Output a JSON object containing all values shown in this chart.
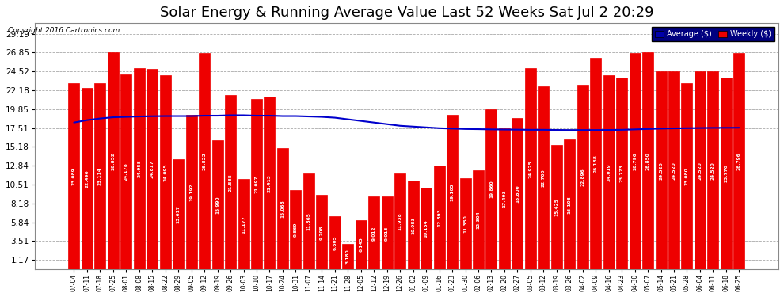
{
  "title": "Solar Energy & Running Average Value Last 52 Weeks Sat Jul 2 20:29",
  "copyright": "Copyright 2016 Cartronics.com",
  "bar_color": "#EE0000",
  "avg_line_color": "#0000CC",
  "bg_color": "#FFFFFF",
  "plot_bg_color": "#FFFFFF",
  "grid_color": "#AAAAAA",
  "title_fontsize": 13,
  "ytick_labels": [
    "1.17",
    "3.51",
    "5.84",
    "8.18",
    "10.51",
    "12.84",
    "15.18",
    "17.51",
    "19.85",
    "22.18",
    "24.52",
    "26.85",
    "29.19"
  ],
  "ytick_values": [
    1.17,
    3.51,
    5.84,
    8.18,
    10.51,
    12.84,
    15.18,
    17.51,
    19.85,
    22.18,
    24.52,
    26.85,
    29.19
  ],
  "categories": [
    "07-04",
    "07-11",
    "07-18",
    "07-25",
    "08-01",
    "08-08",
    "08-15",
    "08-22",
    "08-29",
    "09-05",
    "09-12",
    "09-19",
    "09-26",
    "10-03",
    "10-10",
    "10-17",
    "10-24",
    "10-31",
    "11-07",
    "11-14",
    "11-21",
    "11-28",
    "12-05",
    "12-12",
    "12-19",
    "12-26",
    "01-02",
    "01-09",
    "01-16",
    "01-23",
    "01-30",
    "02-06",
    "02-13",
    "02-20",
    "02-27",
    "03-05",
    "03-12",
    "03-19",
    "03-26",
    "04-02",
    "04-09",
    "04-16",
    "04-23",
    "04-30",
    "05-07",
    "05-14",
    "05-21",
    "05-28",
    "06-04",
    "06-11",
    "06-18",
    "06-25"
  ],
  "weekly_values": [
    23.089,
    22.49,
    23.114,
    26.852,
    24.178,
    24.958,
    24.817,
    24.095,
    13.617,
    19.192,
    26.822,
    15.99,
    21.585,
    11.177,
    21.097,
    21.413,
    15.068,
    9.869,
    11.865,
    9.208,
    6.605,
    3.18,
    6.145,
    9.012,
    9.013,
    11.938,
    10.983,
    10.154,
    12.893,
    19.105,
    11.35,
    12.304,
    19.86,
    17.493,
    18.8,
    24.925,
    22.7,
    15.425,
    16.108,
    22.896,
    26.188,
    24.019,
    23.773,
    26.796,
    26.85,
    24.52,
    24.52,
    23.08,
    24.52,
    24.52,
    23.77,
    26.796
  ],
  "avg_values": [
    18.2,
    18.5,
    18.7,
    18.85,
    18.9,
    18.95,
    18.98,
    19.0,
    19.0,
    19.0,
    19.05,
    19.05,
    19.1,
    19.1,
    19.05,
    19.05,
    19.0,
    19.0,
    18.95,
    18.9,
    18.8,
    18.6,
    18.4,
    18.2,
    18.0,
    17.8,
    17.7,
    17.6,
    17.5,
    17.45,
    17.4,
    17.38,
    17.35,
    17.33,
    17.32,
    17.3,
    17.3,
    17.28,
    17.27,
    17.27,
    17.27,
    17.28,
    17.3,
    17.35,
    17.4,
    17.45,
    17.48,
    17.5,
    17.52,
    17.54,
    17.55,
    17.56
  ]
}
